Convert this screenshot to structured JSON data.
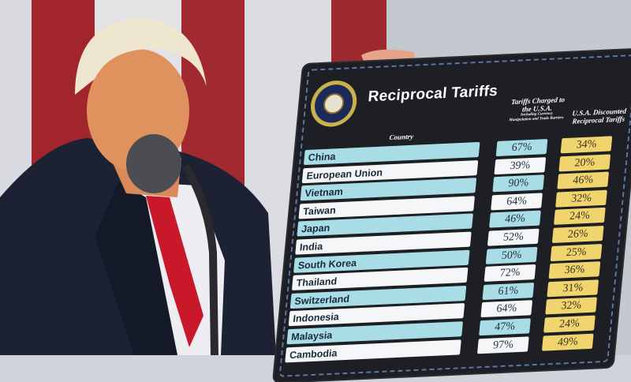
{
  "board": {
    "title": "Reciprocal Tariffs",
    "seal_text": "SEAL OF THE PRESIDENT OF THE UNITED STATES",
    "header_country": "Country",
    "header_charged": "Tariffs Charged to the U.S.A.",
    "header_charged_sub": "Including Currency Manipulation and Trade Barriers",
    "header_discounted": "U.S.A. Discounted Reciprocal Tariffs",
    "rows": [
      {
        "country": "China",
        "charged": "67%",
        "discounted": "34%"
      },
      {
        "country": "European Union",
        "charged": "39%",
        "discounted": "20%"
      },
      {
        "country": "Vietnam",
        "charged": "90%",
        "discounted": "46%"
      },
      {
        "country": "Taiwan",
        "charged": "64%",
        "discounted": "32%"
      },
      {
        "country": "Japan",
        "charged": "46%",
        "discounted": "24%"
      },
      {
        "country": "India",
        "charged": "52%",
        "discounted": "26%"
      },
      {
        "country": "South Korea",
        "charged": "50%",
        "discounted": "25%"
      },
      {
        "country": "Thailand",
        "charged": "72%",
        "discounted": "36%"
      },
      {
        "country": "Switzerland",
        "charged": "61%",
        "discounted": "31%"
      },
      {
        "country": "Indonesia",
        "charged": "64%",
        "discounted": "32%"
      },
      {
        "country": "Malaysia",
        "charged": "47%",
        "discounted": "24%"
      },
      {
        "country": "Cambodia",
        "charged": "97%",
        "discounted": "49%"
      }
    ]
  },
  "colors": {
    "flag_red": "#a3252c",
    "suit": "#1c2233",
    "tie": "#c8182a",
    "board": "#1d1f24",
    "row_blue": "#a9dde6",
    "row_gold": "#f0d46e"
  }
}
